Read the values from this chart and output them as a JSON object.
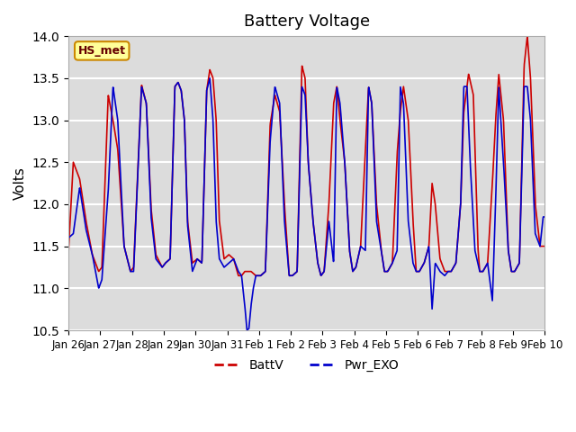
{
  "title": "Battery Voltage",
  "ylabel": "Volts",
  "ylim": [
    10.5,
    14.0
  ],
  "yticks": [
    10.5,
    11.0,
    11.5,
    12.0,
    12.5,
    13.0,
    13.5,
    14.0
  ],
  "bg_color": "#dcdcdc",
  "grid_color": "white",
  "line_color_batt": "#cc0000",
  "line_color_pwr": "#0000cc",
  "legend_label_batt": "BattV",
  "legend_label_pwr": "Pwr_EXO",
  "station_label": "HS_met",
  "xtick_labels": [
    "Jan 26",
    "Jan 27",
    "Jan 28",
    "Jan 29",
    "Jan 30",
    "Jan 31",
    "Feb 1",
    "Feb 2",
    "Feb 3",
    "Feb 4",
    "Feb 5",
    "Feb 6",
    "Feb 7",
    "Feb 8",
    "Feb 9",
    "Feb 10"
  ],
  "batt_kx": [
    0.0,
    0.15,
    0.35,
    0.55,
    0.75,
    0.95,
    1.05,
    1.25,
    1.4,
    1.55,
    1.75,
    1.95,
    2.05,
    2.3,
    2.45,
    2.6,
    2.75,
    2.95,
    3.05,
    3.2,
    3.35,
    3.45,
    3.55,
    3.65,
    3.75,
    3.9,
    4.05,
    4.2,
    4.35,
    4.45,
    4.55,
    4.65,
    4.75,
    4.9,
    5.05,
    5.2,
    5.35,
    5.45,
    5.55,
    5.65,
    5.75,
    5.9,
    6.05,
    6.2,
    6.35,
    6.5,
    6.65,
    6.8,
    6.95,
    7.05,
    7.2,
    7.35,
    7.45,
    7.55,
    7.7,
    7.85,
    7.95,
    8.05,
    8.2,
    8.35,
    8.45,
    8.55,
    8.7,
    8.85,
    8.95,
    9.05,
    9.2,
    9.35,
    9.45,
    9.55,
    9.7,
    9.85,
    9.95,
    10.05,
    10.2,
    10.35,
    10.45,
    10.55,
    10.7,
    10.85,
    10.95,
    11.05,
    11.2,
    11.35,
    11.45,
    11.55,
    11.7,
    11.85,
    11.95,
    12.05,
    12.2,
    12.35,
    12.45,
    12.6,
    12.75,
    12.9,
    12.95,
    13.05,
    13.2,
    13.35,
    13.45,
    13.55,
    13.7,
    13.85,
    13.95,
    14.05,
    14.2,
    14.35,
    14.45,
    14.55,
    14.7,
    14.85,
    14.95,
    15.0
  ],
  "batt_ky": [
    11.45,
    12.5,
    12.3,
    11.8,
    11.4,
    11.2,
    11.25,
    13.3,
    13.0,
    12.65,
    11.5,
    11.2,
    11.25,
    13.42,
    13.2,
    11.95,
    11.4,
    11.25,
    11.3,
    11.35,
    13.4,
    13.45,
    13.35,
    13.0,
    11.8,
    11.3,
    11.35,
    11.3,
    13.35,
    13.6,
    13.5,
    13.0,
    11.8,
    11.35,
    11.4,
    11.35,
    11.15,
    11.15,
    11.2,
    11.2,
    11.2,
    11.15,
    11.15,
    11.2,
    12.95,
    13.3,
    13.1,
    12.0,
    11.15,
    11.15,
    11.2,
    13.65,
    13.5,
    12.5,
    11.8,
    11.3,
    11.15,
    11.2,
    12.0,
    13.2,
    13.4,
    13.0,
    12.5,
    11.45,
    11.2,
    11.25,
    11.5,
    12.65,
    13.4,
    13.2,
    12.0,
    11.45,
    11.2,
    11.2,
    11.3,
    12.6,
    13.1,
    13.4,
    13.0,
    11.8,
    11.2,
    11.2,
    11.3,
    11.5,
    12.25,
    12.0,
    11.35,
    11.2,
    11.2,
    11.2,
    11.3,
    12.0,
    13.1,
    13.55,
    13.3,
    11.45,
    11.2,
    11.2,
    11.3,
    12.25,
    13.0,
    13.55,
    13.0,
    11.45,
    11.2,
    11.2,
    11.3,
    13.65,
    14.0,
    13.5,
    12.0,
    11.5,
    11.5,
    11.5
  ],
  "pwr_kx": [
    0.0,
    0.15,
    0.35,
    0.55,
    0.75,
    0.95,
    1.05,
    1.25,
    1.4,
    1.55,
    1.75,
    1.95,
    2.05,
    2.3,
    2.45,
    2.6,
    2.75,
    2.95,
    3.05,
    3.2,
    3.35,
    3.45,
    3.55,
    3.65,
    3.75,
    3.9,
    4.05,
    4.2,
    4.35,
    4.45,
    4.55,
    4.65,
    4.75,
    4.9,
    5.05,
    5.2,
    5.35,
    5.45,
    5.55,
    5.62,
    5.68,
    5.75,
    5.82,
    5.9,
    6.05,
    6.2,
    6.35,
    6.5,
    6.65,
    6.8,
    6.95,
    7.05,
    7.2,
    7.35,
    7.45,
    7.55,
    7.7,
    7.85,
    7.95,
    8.05,
    8.2,
    8.35,
    8.45,
    8.55,
    8.7,
    8.85,
    8.95,
    9.05,
    9.2,
    9.35,
    9.45,
    9.55,
    9.7,
    9.85,
    9.95,
    10.05,
    10.2,
    10.35,
    10.45,
    10.55,
    10.7,
    10.85,
    10.95,
    11.05,
    11.2,
    11.35,
    11.45,
    11.55,
    11.7,
    11.85,
    11.95,
    12.05,
    12.2,
    12.35,
    12.45,
    12.55,
    12.65,
    12.8,
    12.95,
    13.05,
    13.2,
    13.35,
    13.45,
    13.55,
    13.7,
    13.85,
    13.95,
    14.05,
    14.2,
    14.35,
    14.45,
    14.55,
    14.7,
    14.85,
    14.95,
    15.0
  ],
  "pwr_ky": [
    11.6,
    11.65,
    12.2,
    11.7,
    11.4,
    11.0,
    11.1,
    12.15,
    13.4,
    13.0,
    11.5,
    11.2,
    11.2,
    13.4,
    13.2,
    11.85,
    11.35,
    11.25,
    11.3,
    11.35,
    13.4,
    13.45,
    13.35,
    13.0,
    11.75,
    11.2,
    11.35,
    11.3,
    13.35,
    13.5,
    13.0,
    11.8,
    11.35,
    11.25,
    11.3,
    11.35,
    11.2,
    11.15,
    10.8,
    10.5,
    10.52,
    10.8,
    11.0,
    11.15,
    11.15,
    11.2,
    12.75,
    13.4,
    13.2,
    11.8,
    11.15,
    11.15,
    11.2,
    13.4,
    13.3,
    12.5,
    11.8,
    11.3,
    11.15,
    11.2,
    11.8,
    11.3,
    13.4,
    13.2,
    12.5,
    11.45,
    11.2,
    11.25,
    11.5,
    11.45,
    13.4,
    13.2,
    11.8,
    11.45,
    11.2,
    11.2,
    11.3,
    11.45,
    13.4,
    13.2,
    11.8,
    11.3,
    11.2,
    11.2,
    11.3,
    11.5,
    10.75,
    11.3,
    11.2,
    11.15,
    11.2,
    11.2,
    11.3,
    12.0,
    13.4,
    13.4,
    12.5,
    11.45,
    11.2,
    11.2,
    11.3,
    10.85,
    12.0,
    13.4,
    12.5,
    11.45,
    11.2,
    11.2,
    11.3,
    13.4,
    13.4,
    13.0,
    11.65,
    11.5,
    11.85,
    11.85
  ]
}
